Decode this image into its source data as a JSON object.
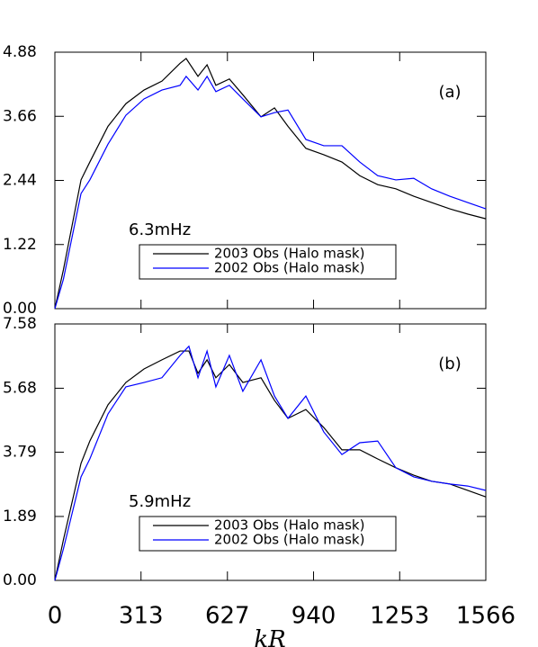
{
  "chart_data": [
    {
      "type": "line",
      "panel_label": "(a)",
      "annotation": "6.3mHz",
      "x": [
        0,
        31,
        95,
        127,
        193,
        258,
        324,
        389,
        455,
        477,
        520,
        553,
        585,
        634,
        683,
        749,
        798,
        847,
        912,
        977,
        1043,
        1108,
        1173,
        1239,
        1304,
        1369,
        1435,
        1500,
        1566
      ],
      "series": [
        {
          "name": "2003 Obs (Halo mask)",
          "color": "#000000",
          "values": [
            0,
            0.74,
            2.45,
            2.79,
            3.47,
            3.9,
            4.16,
            4.33,
            4.67,
            4.76,
            4.42,
            4.64,
            4.25,
            4.37,
            4.07,
            3.65,
            3.82,
            3.47,
            3.05,
            2.93,
            2.79,
            2.53,
            2.36,
            2.28,
            2.14,
            2.02,
            1.9,
            1.8,
            1.71
          ]
        },
        {
          "name": "2002 Obs (Halo mask)",
          "color": "#0000ff",
          "values": [
            0,
            0.56,
            2.19,
            2.45,
            3.13,
            3.68,
            3.99,
            4.16,
            4.25,
            4.42,
            4.16,
            4.42,
            4.13,
            4.25,
            3.99,
            3.65,
            3.73,
            3.78,
            3.22,
            3.1,
            3.1,
            2.79,
            2.53,
            2.45,
            2.48,
            2.28,
            2.14,
            2.02,
            1.9
          ]
        }
      ],
      "xlim": [
        0,
        1566
      ],
      "ylim": [
        0,
        4.88
      ],
      "yticks": [
        {
          "value": 0,
          "label": "0.00"
        },
        1.22,
        2.44,
        3.66,
        4.88
      ]
    },
    {
      "type": "line",
      "panel_label": "(b)",
      "annotation": "5.9mHz",
      "xlabel": "kR",
      "x": [
        0,
        31,
        95,
        127,
        193,
        258,
        324,
        389,
        455,
        487,
        520,
        553,
        585,
        634,
        683,
        749,
        798,
        847,
        912,
        977,
        1043,
        1108,
        1173,
        1239,
        1304,
        1369,
        1435,
        1500,
        1566
      ],
      "series": [
        {
          "name": "2003 Obs (Halo mask)",
          "color": "#000000",
          "values": [
            0,
            1.2,
            3.46,
            4.12,
            5.19,
            5.85,
            6.25,
            6.52,
            6.78,
            6.78,
            6.12,
            6.52,
            5.99,
            6.38,
            5.85,
            5.99,
            5.32,
            4.79,
            5.05,
            4.52,
            3.86,
            3.86,
            3.59,
            3.33,
            3.11,
            2.93,
            2.85,
            2.66,
            2.47
          ]
        },
        {
          "name": "2002 Obs (Halo mask)",
          "color": "#0000ff",
          "values": [
            0,
            0.93,
            3.06,
            3.59,
            4.92,
            5.72,
            5.85,
            5.99,
            6.65,
            6.92,
            5.99,
            6.78,
            5.72,
            6.65,
            5.59,
            6.52,
            5.45,
            4.79,
            5.45,
            4.39,
            3.72,
            4.07,
            4.12,
            3.33,
            3.06,
            2.93,
            2.85,
            2.79,
            2.66
          ]
        }
      ],
      "xlim": [
        0,
        1566
      ],
      "ylim": [
        0,
        7.58
      ],
      "xticks": [
        0,
        313,
        627,
        940,
        1253,
        1566
      ],
      "yticks": [
        {
          "value": 0,
          "label": "0.00"
        },
        1.89,
        3.79,
        5.68,
        7.58
      ]
    }
  ]
}
